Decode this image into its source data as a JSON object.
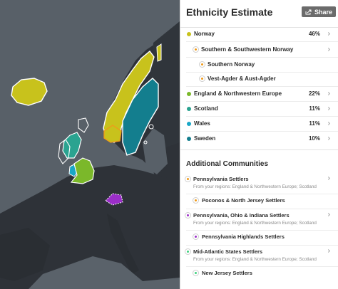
{
  "header": {
    "title": "Ethnicity Estimate",
    "share_label": "Share"
  },
  "colors": {
    "norway": "#c8c21c",
    "england": "#7bb82a",
    "scotland": "#2aa390",
    "wales": "#19a7c7",
    "sweden": "#137e8e",
    "community_orange": "#f09a1a",
    "community_purple": "#9b2ec9",
    "community_green": "#3ed17f",
    "map_water": "#586068",
    "map_land": "#2e3238"
  },
  "regions": [
    {
      "label": "Norway",
      "percent": "46%",
      "color": "#c8c21c",
      "children": [
        {
          "label": "Southern & Southwestern Norway",
          "children": [
            {
              "label": "Southern Norway"
            },
            {
              "label": "Vest-Agder & Aust-Agder"
            }
          ]
        }
      ]
    },
    {
      "label": "England & Northwestern Europe",
      "percent": "22%",
      "color": "#7bb82a"
    },
    {
      "label": "Scotland",
      "percent": "11%",
      "color": "#2aa390"
    },
    {
      "label": "Wales",
      "percent": "11%",
      "color": "#19a7c7"
    },
    {
      "label": "Sweden",
      "percent": "10%",
      "color": "#137e8e"
    }
  ],
  "communities_title": "Additional Communities",
  "communities": [
    {
      "label": "Pennsylvania Settlers",
      "from": "From your regions: England & Northwestern Europe; Scotland",
      "child": "Poconos & North Jersey Settlers"
    },
    {
      "label": "Pennsylvania, Ohio & Indiana Settlers",
      "from": "From your regions: England & Northwestern Europe; Scotland",
      "child": "Pennsylvania Highlands Settlers"
    },
    {
      "label": "Mid-Atlantic States Settlers",
      "from": "From your regions: England & Northwestern Europe; Scotland",
      "child": "New Jersey Settlers"
    }
  ]
}
